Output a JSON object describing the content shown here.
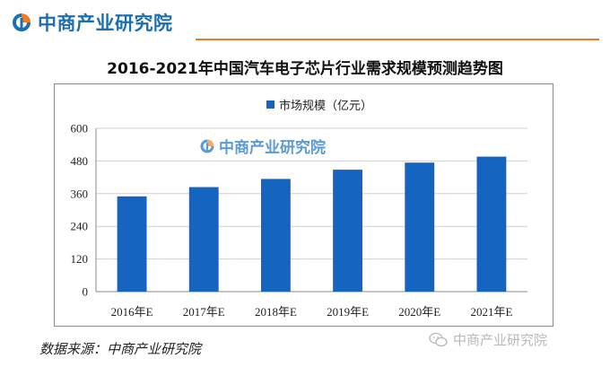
{
  "header": {
    "logo_text": "中商产业研究院",
    "accent_color": "#f07a23",
    "brand_color": "#1a6fb3"
  },
  "chart_data": {
    "type": "bar",
    "title": "2016-2021年中国汽车电子芯片行业需求规模预测趋势图",
    "categories": [
      "2016年E",
      "2017年E",
      "2018年E",
      "2019年E",
      "2020年E",
      "2021年E"
    ],
    "series": [
      {
        "name": "市场规模（亿元）",
        "color": "#1565c0",
        "values": [
          350,
          384,
          414,
          448,
          474,
          496
        ]
      }
    ],
    "yticks": [
      "0",
      "120",
      "240",
      "360",
      "480",
      "600"
    ],
    "ylim": [
      0,
      600
    ],
    "grid": true,
    "legend_position": "top-center",
    "watermark_logo_text": "中商产业研究院"
  },
  "footer": {
    "source": "数据来源：中商产业研究院",
    "watermark_text": "中商产业研究院",
    "watermark_icon": "wechat-icon"
  }
}
